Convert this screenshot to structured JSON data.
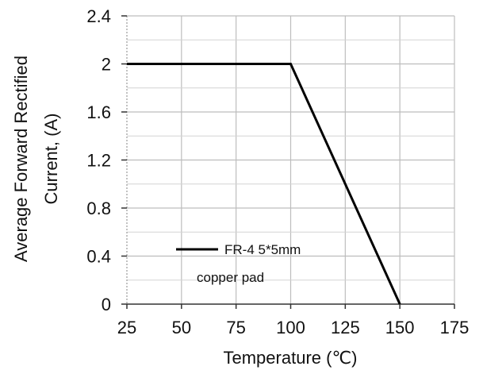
{
  "chart_data": {
    "type": "line",
    "xlabel": "Temperature  (℃)",
    "ylabel_line1": "Average  Forward  Rectified",
    "ylabel_line2": "Current, (A)",
    "xlim": [
      25,
      175
    ],
    "ylim": [
      0,
      2.4
    ],
    "xticks": [
      25,
      50,
      75,
      100,
      125,
      150,
      175
    ],
    "yticks": [
      0,
      0.4,
      0.8,
      1.2,
      1.6,
      2,
      2.4
    ],
    "xtick_labels": [
      "25",
      "50",
      "75",
      "100",
      "125",
      "150",
      "175"
    ],
    "ytick_labels": [
      "0",
      "0.4",
      "0.8",
      "1.2",
      "1.6",
      "2",
      "2.4"
    ],
    "grid": true,
    "legend_position": "lower-left",
    "series": [
      {
        "name": "FR-4  5*5mm copper pad",
        "legend_line1": "FR-4  5*5mm",
        "legend_line2": "copper pad",
        "color": "#000000",
        "x": [
          25,
          100,
          150
        ],
        "y": [
          2,
          2,
          0
        ]
      }
    ]
  }
}
